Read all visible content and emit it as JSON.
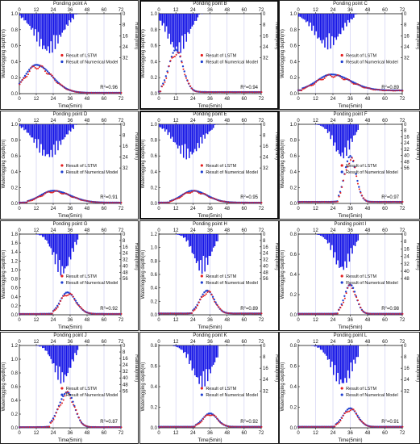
{
  "figure": {
    "rain_x_ticks": [
      "0",
      "12",
      "24",
      "36",
      "48",
      "60",
      "72"
    ],
    "x_ticks": [
      "0",
      "12",
      "24",
      "36",
      "48",
      "60",
      "72"
    ],
    "colors": {
      "lstm": "#e52020",
      "model": "#1f3fd0",
      "rain": "#1414e6",
      "axis": "#111111",
      "grid": "#c8c8f0"
    }
  },
  "chart_data": [
    {
      "type": "line",
      "title": "Ponding point A",
      "xlabel": "Time(5min)",
      "ylabel": "Waterlogging depth(m)",
      "y2label": "Rainfall(mm)",
      "xlim": [
        0,
        72
      ],
      "ylim": [
        0,
        1.0
      ],
      "yticks": [
        "0.0",
        "0.2",
        "0.4",
        "0.6",
        "0.8",
        "1.0"
      ],
      "y2ticks": [
        "0",
        "8",
        "16",
        "24",
        "32"
      ],
      "y2max": 32,
      "legend": {
        "lstm": "Result of LSTM",
        "model": "Result of Numerical Model"
      },
      "r2": "0.96",
      "depth_peak": {
        "t": 12,
        "depth": 0.36,
        "width_rise": 8,
        "width_fall": 11,
        "tail": 0.01
      },
      "rain_peak": {
        "t": 20,
        "height": 30,
        "spread": 9
      },
      "series": [
        {
          "name": "Result of LSTM"
        },
        {
          "name": "Result of Numerical Model"
        }
      ]
    },
    {
      "type": "line",
      "title": "Ponding point B",
      "xlabel": "Time(5min)",
      "ylabel": "Waterlogging depth(m)",
      "y2label": "Rainfall(mm)",
      "xlim": [
        0,
        72
      ],
      "ylim": [
        0,
        1.0
      ],
      "yticks": [
        "0.0",
        "0.2",
        "0.4",
        "0.6",
        "0.8",
        "1.0"
      ],
      "y2ticks": [
        "0",
        "8",
        "16",
        "24",
        "32"
      ],
      "y2max": 32,
      "legend": {
        "lstm": "Result of LSTM",
        "model": "Result of Numerical Model"
      },
      "r2": "0.94",
      "depth_peak": {
        "t": 12,
        "depth": 0.55,
        "width_rise": 5,
        "width_fall": 5,
        "tail": 0.02
      },
      "rain_peak": {
        "t": 13,
        "height": 30,
        "spread": 7
      },
      "series": [
        {
          "name": "Result of LSTM"
        },
        {
          "name": "Result of Numerical Model"
        }
      ]
    },
    {
      "type": "line",
      "title": "Ponding point C",
      "xlabel": "Time(5min)",
      "ylabel": "Waterlogging depth(m)",
      "y2label": "Rainfall(mm)",
      "xlim": [
        0,
        72
      ],
      "ylim": [
        0,
        1.0
      ],
      "yticks": [
        "0.0",
        "0.2",
        "0.4",
        "0.6",
        "0.8",
        "1.0"
      ],
      "y2ticks": [
        "0",
        "8",
        "16",
        "24",
        "32"
      ],
      "y2max": 32,
      "legend": {
        "lstm": "Result of LSTM",
        "model": "Result of Numerical Model"
      },
      "r2": "0.89",
      "depth_peak": {
        "t": 23,
        "depth": 0.24,
        "width_rise": 10,
        "width_fall": 13,
        "tail": 0.04
      },
      "rain_peak": {
        "t": 20,
        "height": 26,
        "spread": 9
      },
      "series": [
        {
          "name": "Result of LSTM"
        },
        {
          "name": "Result of Numerical Model"
        }
      ]
    },
    {
      "type": "line",
      "title": "Ponding point D",
      "xlabel": "Time(5min)",
      "ylabel": "Waterlogging depth(m)",
      "y2label": "Rainfall(mm)",
      "xlim": [
        0,
        72
      ],
      "ylim": [
        0,
        1.0
      ],
      "yticks": [
        "0.0",
        "0.2",
        "0.4",
        "0.6",
        "0.8",
        "1.0"
      ],
      "y2ticks": [
        "0",
        "8",
        "16",
        "24",
        "32"
      ],
      "y2max": 32,
      "legend": {
        "lstm": "Result of LSTM",
        "model": "Result of Numerical Model"
      },
      "r2": "0.91",
      "depth_peak": {
        "t": 24,
        "depth": 0.16,
        "width_rise": 9,
        "width_fall": 12,
        "tail": 0.01
      },
      "rain_peak": {
        "t": 20,
        "height": 26,
        "spread": 9
      },
      "series": [
        {
          "name": "Result of LSTM"
        },
        {
          "name": "Result of Numerical Model"
        }
      ]
    },
    {
      "type": "line",
      "title": "Ponding point E",
      "xlabel": "Time(5min)",
      "ylabel": "Waterlogging depth(m)",
      "y2label": "Rainfall(mm)",
      "xlim": [
        0,
        72
      ],
      "ylim": [
        0,
        1.0
      ],
      "yticks": [
        "0.0",
        "0.2",
        "0.4",
        "0.6",
        "0.8",
        "1.0"
      ],
      "y2ticks": [
        "0",
        "8",
        "16",
        "24",
        "32"
      ],
      "y2max": 32,
      "legend": {
        "lstm": "Result of LSTM",
        "model": "Result of Numerical Model"
      },
      "r2": "0.95",
      "depth_peak": {
        "t": 24,
        "depth": 0.16,
        "width_rise": 8,
        "width_fall": 10,
        "tail": 0.01
      },
      "rain_peak": {
        "t": 20,
        "height": 26,
        "spread": 9
      },
      "series": [
        {
          "name": "Result of LSTM"
        },
        {
          "name": "Result of Numerical Model"
        }
      ]
    },
    {
      "type": "line",
      "title": "Ponding point F",
      "xlabel": "Time(5min)",
      "ylabel": "Waterlogging depth(m)",
      "y2label": "Rainfall(mm)",
      "xlim": [
        0,
        72
      ],
      "ylim": [
        0,
        1.0
      ],
      "yticks": [
        "0.0",
        "0.2",
        "0.4",
        "0.6",
        "0.8",
        "1.0"
      ],
      "y2ticks": [
        "0",
        "8",
        "16",
        "24",
        "32",
        "40",
        "48",
        "56"
      ],
      "y2max": 56,
      "legend": {
        "lstm": "Result of LSTM",
        "model": "Result of Numerical Model"
      },
      "r2": "0.97",
      "depth_peak": {
        "t": 36,
        "depth": 0.6,
        "width_rise": 4,
        "width_fall": 4,
        "tail": 0.02
      },
      "rain_peak": {
        "t": 30,
        "height": 46,
        "spread": 6
      },
      "series": [
        {
          "name": "Result of LSTM"
        },
        {
          "name": "Result of Numerical Model"
        }
      ]
    },
    {
      "type": "line",
      "title": "Ponding point G",
      "xlabel": "Time(5min)",
      "ylabel": "Waterlogging depth(m)",
      "y2label": "Rainfall(mm)",
      "xlim": [
        0,
        72
      ],
      "ylim": [
        0,
        1.8
      ],
      "yticks": [
        "0.0",
        "0.2",
        "0.4",
        "0.6",
        "0.8",
        "1.0",
        "1.2",
        "1.4",
        "1.6",
        "1.8"
      ],
      "y2ticks": [
        "0",
        "8",
        "16",
        "24",
        "32",
        "40",
        "48",
        "56"
      ],
      "y2max": 56,
      "legend": {
        "lstm": "Result of LSTM",
        "model": "Result of Numerical Model"
      },
      "r2": "0.92",
      "depth_peak": {
        "t": 34,
        "depth": 0.5,
        "width_rise": 5,
        "width_fall": 6,
        "tail": 0.02
      },
      "rain_peak": {
        "t": 30,
        "height": 54,
        "spread": 6
      },
      "series": [
        {
          "name": "Result of LSTM"
        },
        {
          "name": "Result of Numerical Model"
        }
      ]
    },
    {
      "type": "line",
      "title": "Ponding point H",
      "xlabel": "Time(5min)",
      "ylabel": "Waterlogging depth(m)",
      "y2label": "Rainfall(mm)",
      "xlim": [
        0,
        72
      ],
      "ylim": [
        0,
        1.2
      ],
      "yticks": [
        "0.0",
        "0.2",
        "0.4",
        "0.6",
        "0.8",
        "1.0",
        "1.2"
      ],
      "y2ticks": [
        "0",
        "8",
        "16",
        "24",
        "32",
        "40",
        "48",
        "56"
      ],
      "y2max": 56,
      "legend": {
        "lstm": "Result of LSTM",
        "model": "Result of Numerical Model"
      },
      "r2": "0.89",
      "depth_peak": {
        "t": 34,
        "depth": 0.36,
        "width_rise": 5,
        "width_fall": 5,
        "tail": 0.02
      },
      "rain_peak": {
        "t": 30,
        "height": 50,
        "spread": 6
      },
      "series": [
        {
          "name": "Result of LSTM"
        },
        {
          "name": "Result of Numerical Model"
        }
      ]
    },
    {
      "type": "line",
      "title": "Ponding point I",
      "xlabel": "Time(5min)",
      "ylabel": "Waterlogging depth(m)",
      "y2label": "Rainfall(mm)",
      "xlim": [
        0,
        72
      ],
      "ylim": [
        0,
        0.8
      ],
      "yticks": [
        "0.0",
        "0.2",
        "0.4",
        "0.6",
        "0.8"
      ],
      "y2ticks": [
        "0",
        "8",
        "16",
        "24",
        "32",
        "40",
        "48"
      ],
      "y2max": 48,
      "legend": {
        "lstm": "Result of LSTM",
        "model": "Result of Numerical Model"
      },
      "r2": "0.98",
      "depth_peak": {
        "t": 36,
        "depth": 0.3,
        "width_rise": 4,
        "width_fall": 4,
        "tail": 0.01
      },
      "rain_peak": {
        "t": 30,
        "height": 42,
        "spread": 6
      },
      "series": [
        {
          "name": "Result of LSTM"
        },
        {
          "name": "Result of Numerical Model"
        }
      ]
    },
    {
      "type": "line",
      "title": "Ponding point J",
      "xlabel": "Time(5min)",
      "ylabel": "Waterlogging depth(m)",
      "y2label": "Rainfall(mm)",
      "xlim": [
        0,
        72
      ],
      "ylim": [
        0,
        1.2
      ],
      "yticks": [
        "0.0",
        "0.2",
        "0.4",
        "0.6",
        "0.8",
        "1.0",
        "1.2"
      ],
      "y2ticks": [
        "0",
        "8",
        "16",
        "24",
        "32",
        "40",
        "48",
        "56"
      ],
      "y2max": 56,
      "legend": {
        "lstm": "Result of LSTM",
        "model": "Result of Numerical Model"
      },
      "r2": "0.87",
      "depth_peak": {
        "t": 34,
        "depth": 0.52,
        "width_rise": 6,
        "width_fall": 5,
        "tail": 0.01
      },
      "rain_peak": {
        "t": 30,
        "height": 48,
        "spread": 6
      },
      "series": [
        {
          "name": "Result of LSTM"
        },
        {
          "name": "Result of Numerical Model"
        }
      ]
    },
    {
      "type": "line",
      "title": "Ponding point K",
      "xlabel": "Time(5min)",
      "ylabel": "Waterlogging depth(m)",
      "y2label": "Rainfall(mm)",
      "xlim": [
        0,
        72
      ],
      "ylim": [
        0,
        0.8
      ],
      "yticks": [
        "0.0",
        "0.2",
        "0.4",
        "0.6",
        "0.8"
      ],
      "y2ticks": [
        "0",
        "8",
        "16",
        "24",
        "32"
      ],
      "y2max": 32,
      "legend": {
        "lstm": "Result of LSTM",
        "model": "Result of Numerical Model"
      },
      "r2": "0.92",
      "depth_peak": {
        "t": 36,
        "depth": 0.14,
        "width_rise": 5,
        "width_fall": 5,
        "tail": 0.01
      },
      "rain_peak": {
        "t": 30,
        "height": 30,
        "spread": 7
      },
      "series": [
        {
          "name": "Result of LSTM"
        },
        {
          "name": "Result of Numerical Model"
        }
      ]
    },
    {
      "type": "line",
      "title": "Ponding point L",
      "xlabel": "Time(5min)",
      "ylabel": "Waterlogging depth(m)",
      "y2label": "Rainfall(mm)",
      "xlim": [
        0,
        72
      ],
      "ylim": [
        0,
        0.8
      ],
      "yticks": [
        "0.0",
        "0.2",
        "0.4",
        "0.6",
        "0.8"
      ],
      "y2ticks": [
        "0",
        "8",
        "16",
        "24",
        "32"
      ],
      "y2max": 32,
      "legend": {
        "lstm": "Result of LSTM",
        "model": "Result of Numerical Model"
      },
      "r2": "0.91",
      "depth_peak": {
        "t": 36,
        "depth": 0.19,
        "width_rise": 5,
        "width_fall": 5,
        "tail": 0.01
      },
      "rain_peak": {
        "t": 30,
        "height": 30,
        "spread": 7
      },
      "series": [
        {
          "name": "Result of LSTM"
        },
        {
          "name": "Result of Numerical Model"
        }
      ]
    }
  ]
}
